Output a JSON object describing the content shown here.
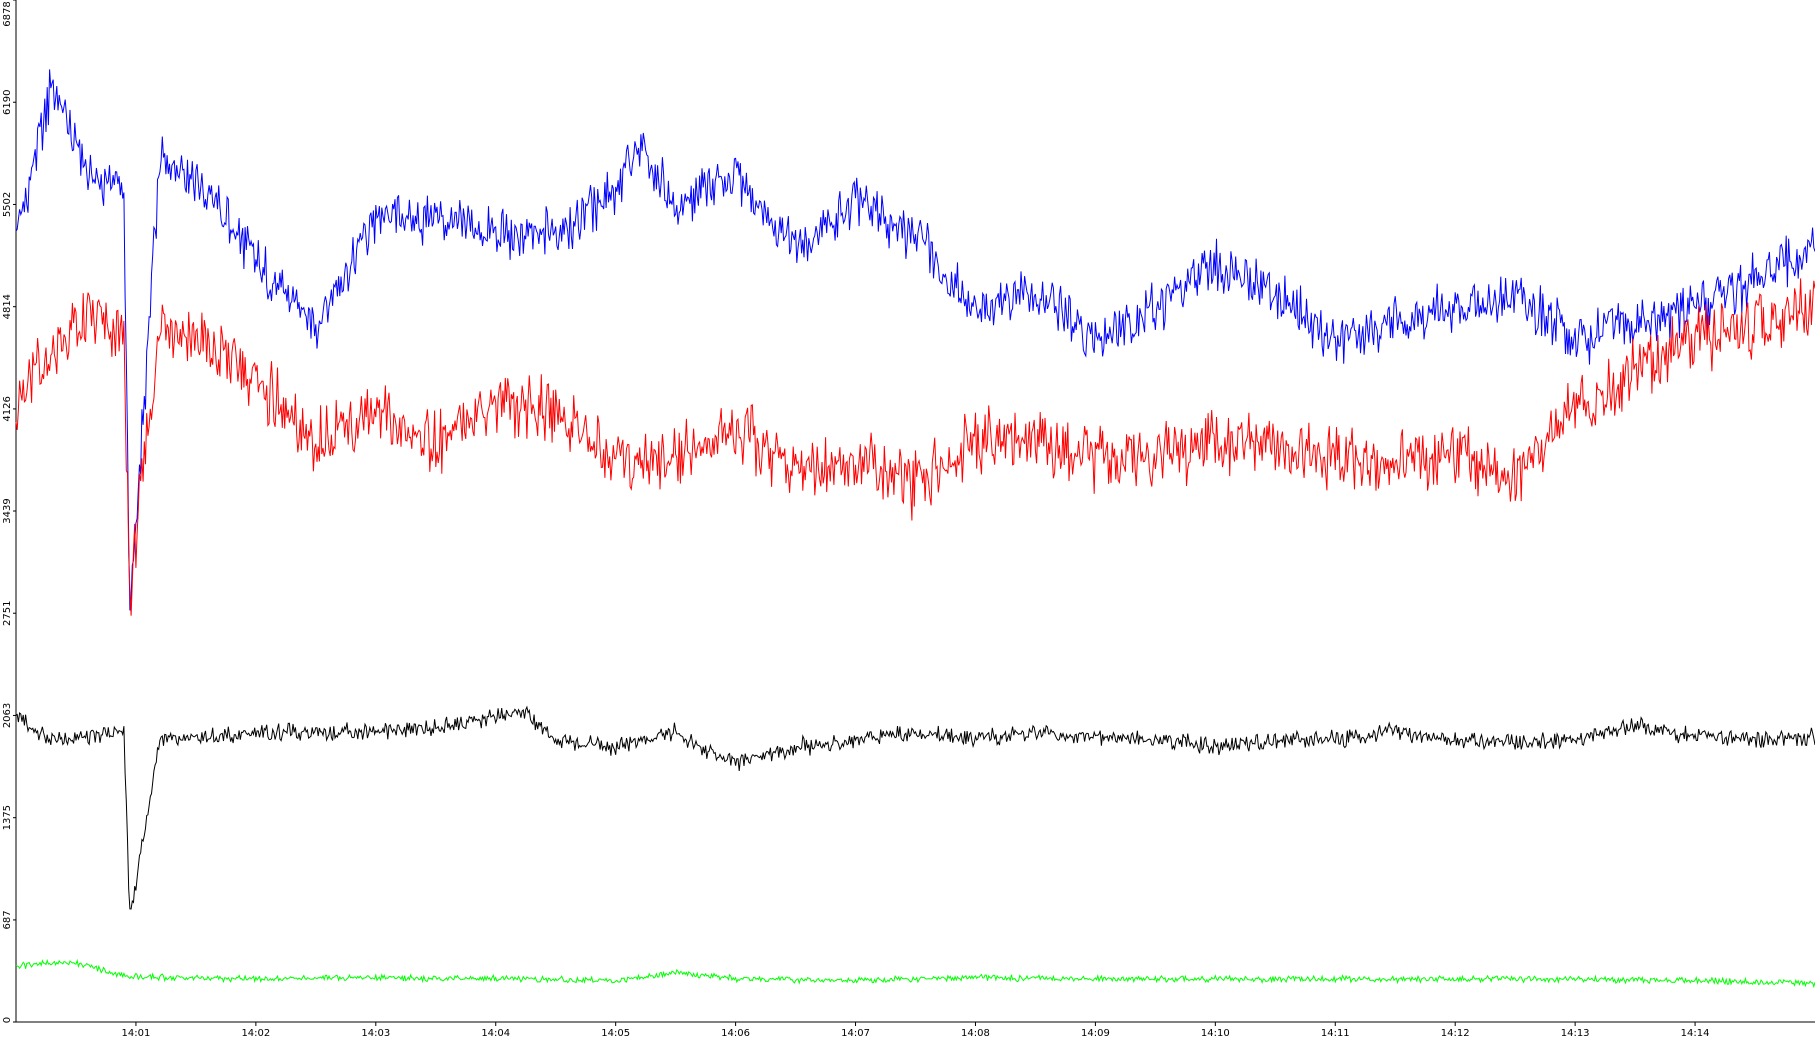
{
  "chart_data": {
    "type": "line",
    "title": "",
    "xlabel": "",
    "ylabel": "",
    "ylim": [
      0,
      6878
    ],
    "yticks": [
      0,
      687,
      1375,
      2063,
      2751,
      3439,
      4126,
      4814,
      5502,
      6190,
      6878
    ],
    "xlim_minutes": [
      0.0,
      15.0
    ],
    "xticks": [
      {
        "label": "14:01",
        "t": 1
      },
      {
        "label": "14:02",
        "t": 2
      },
      {
        "label": "14:03",
        "t": 3
      },
      {
        "label": "14:04",
        "t": 4
      },
      {
        "label": "14:05",
        "t": 5
      },
      {
        "label": "14:06",
        "t": 6
      },
      {
        "label": "14:07",
        "t": 7
      },
      {
        "label": "14:08",
        "t": 8
      },
      {
        "label": "14:09",
        "t": 9
      },
      {
        "label": "14:10",
        "t": 10
      },
      {
        "label": "14:11",
        "t": 11
      },
      {
        "label": "14:12",
        "t": 12
      },
      {
        "label": "14:13",
        "t": 13
      },
      {
        "label": "14:14",
        "t": 14
      }
    ],
    "grid": false,
    "legend": "none",
    "series": [
      {
        "color": "#0000ff",
        "x": [
          0,
          0.3,
          0.6,
          0.9,
          0.95,
          1.2,
          1.5,
          2,
          2.5,
          3,
          3.5,
          4,
          4.5,
          5,
          5.2,
          5.5,
          6,
          6.5,
          7,
          7.5,
          8,
          8.5,
          9,
          9.5,
          10,
          10.5,
          11,
          11.5,
          12,
          12.5,
          13,
          13.5,
          14,
          14.5,
          15
        ],
        "values": [
          5300,
          6300,
          5700,
          5600,
          2700,
          5800,
          5700,
          5100,
          4700,
          5400,
          5400,
          5300,
          5300,
          5600,
          5900,
          5500,
          5700,
          5200,
          5500,
          5300,
          4800,
          4900,
          4600,
          4800,
          5100,
          4900,
          4600,
          4700,
          4800,
          4900,
          4600,
          4700,
          4800,
          5000,
          5200
        ]
      },
      {
        "color": "#ff0000",
        "x": [
          0,
          0.3,
          0.6,
          0.9,
          0.95,
          1.2,
          1.5,
          2,
          2.5,
          3,
          3.5,
          4,
          4.5,
          5,
          5.5,
          6,
          6.5,
          7,
          7.5,
          8,
          8.5,
          9,
          9.5,
          10,
          10.5,
          11,
          11.5,
          12,
          12.5,
          13,
          13.5,
          14,
          14.5,
          15
        ],
        "values": [
          4200,
          4500,
          4700,
          4600,
          2900,
          4700,
          4600,
          4300,
          3900,
          4100,
          3900,
          4200,
          4100,
          3800,
          3800,
          4000,
          3700,
          3800,
          3600,
          3900,
          3900,
          3800,
          3800,
          3900,
          3900,
          3800,
          3800,
          3800,
          3700,
          4100,
          4400,
          4600,
          4700,
          4800
        ]
      },
      {
        "color": "#000000",
        "x": [
          0,
          0.3,
          0.6,
          0.9,
          0.95,
          1.2,
          1.5,
          2,
          2.5,
          3,
          3.5,
          4,
          4.2,
          4.5,
          5,
          5.5,
          5.7,
          6,
          6.5,
          7,
          7.5,
          8,
          8.5,
          9,
          9.5,
          10,
          10.5,
          11,
          11.5,
          12,
          12.5,
          13,
          13.5,
          14,
          14.5,
          15
        ],
        "values": [
          2050,
          1900,
          1920,
          1950,
          700,
          1900,
          1900,
          1950,
          1950,
          1950,
          1980,
          2050,
          2100,
          1900,
          1850,
          1950,
          1850,
          1750,
          1850,
          1900,
          1950,
          1900,
          1950,
          1920,
          1900,
          1850,
          1900,
          1900,
          1950,
          1900,
          1880,
          1900,
          2000,
          1920,
          1900,
          1920
        ]
      },
      {
        "color": "#00ff00",
        "x": [
          0,
          0.5,
          0.9,
          1.2,
          2,
          3,
          4,
          5,
          5.5,
          6,
          7,
          8,
          9,
          10,
          11,
          12,
          13,
          14,
          15
        ],
        "values": [
          380,
          400,
          310,
          300,
          290,
          300,
          290,
          280,
          330,
          290,
          280,
          300,
          290,
          290,
          290,
          290,
          290,
          280,
          260
        ]
      }
    ]
  }
}
